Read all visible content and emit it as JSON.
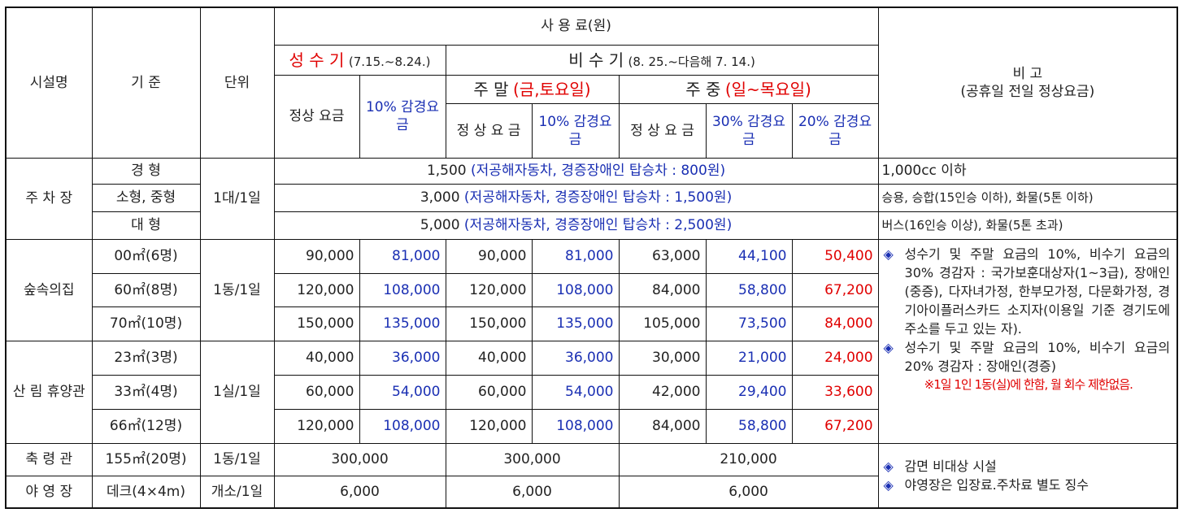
{
  "header": {
    "facility": "시설명",
    "standard": "기 준",
    "unit": "단위",
    "fee_title": "사 용 료(원)",
    "peak_label": "성 수 기",
    "peak_period": "(7.15.~8.24.)",
    "offpeak_label": "비 수 기",
    "offpeak_period": "(8. 25.~다음해 7. 14.)",
    "regular": "정상 요금",
    "discount10": "10% 감경요금",
    "weekend_label": "주 말",
    "weekend_days": "(금,토요일)",
    "weekday_label": "주 중",
    "weekday_days": "(일~목요일)",
    "regular_spaced": "정 상 요 금",
    "discount30": "30% 감경요금",
    "discount20": "20% 감경요금",
    "remarks_title": "비 고",
    "remarks_sub": "(공휴일 전일 정상요금)"
  },
  "parking": {
    "name": "주 차 장",
    "unit": "1대/1일",
    "rows": [
      {
        "standard": "경 형",
        "fee": "1,500",
        "discount": "(저공해자동차, 경증장애인 탑승차 : 800원)",
        "remark": "1,000cc 이하"
      },
      {
        "standard": "소형, 중형",
        "fee": "3,000",
        "discount": "(저공해자동차, 경증장애인 탑승차 : 1,500원)",
        "remark": "승용, 승합(15인승 이하), 화물(5톤 이하)"
      },
      {
        "standard": "대 형",
        "fee": "5,000",
        "discount": "(저공해자동차, 경증장애인 탑승차 : 2,500원)",
        "remark": "버스(16인승 이상), 화물(5톤 초과)"
      }
    ]
  },
  "forest_house": {
    "name": "숲속의집",
    "unit": "1동/1일",
    "rows": [
      {
        "standard": "00㎡(6명)",
        "v": [
          "90,000",
          "81,000",
          "90,000",
          "81,000",
          "63,000",
          "44,100",
          "50,400"
        ]
      },
      {
        "standard": "60㎡(8명)",
        "v": [
          "120,000",
          "108,000",
          "120,000",
          "108,000",
          "84,000",
          "58,800",
          "67,200"
        ]
      },
      {
        "standard": "70㎡(10명)",
        "v": [
          "150,000",
          "135,000",
          "150,000",
          "135,000",
          "105,000",
          "73,500",
          "84,000"
        ]
      }
    ]
  },
  "recreation_hall": {
    "name": "산 림 휴양관",
    "unit": "1실/1일",
    "rows": [
      {
        "standard": "23㎡(3명)",
        "v": [
          "40,000",
          "36,000",
          "40,000",
          "36,000",
          "30,000",
          "21,000",
          "24,000"
        ]
      },
      {
        "standard": "33㎡(4명)",
        "v": [
          "60,000",
          "54,000",
          "60,000",
          "54,000",
          "42,000",
          "29,400",
          "33,600"
        ]
      },
      {
        "standard": "66㎡(12명)",
        "v": [
          "120,000",
          "108,000",
          "120,000",
          "108,000",
          "84,000",
          "58,800",
          "67,200"
        ]
      }
    ]
  },
  "notes": {
    "bullet": "◈",
    "note1": "성수기 및 주말 요금의 10%, 비수기 요금의 30% 경감자 : 국가보훈대상자(1~3급), 장애인(중증), 다자녀가정, 한부모가정, 다문화가정, 경기아이플러스카드 소지자(이용일 기준 경기도에 주소를 두고 있는 자).",
    "note2": "성수기 및 주말 요금의 10%, 비수기 요금의 20% 경감자 : 장애인(경증)",
    "note3": "※1일 1인 1동(실)에 한함, 월 회수 제한없음."
  },
  "hall": {
    "name": "축 령 관",
    "standard": "155㎡(20명)",
    "unit": "1동/1일",
    "peak": "300,000",
    "weekend": "300,000",
    "weekday": "210,000"
  },
  "camp": {
    "name": "야 영 장",
    "standard": "데크(4×4m)",
    "unit": "개소/1일",
    "peak": "6,000",
    "weekend": "6,000",
    "weekday": "6,000"
  },
  "bottom_notes": {
    "bullet": "◈",
    "note1": "감면 비대상 시설",
    "note2": "야영장은 입장료.주차료 별도 징수"
  }
}
